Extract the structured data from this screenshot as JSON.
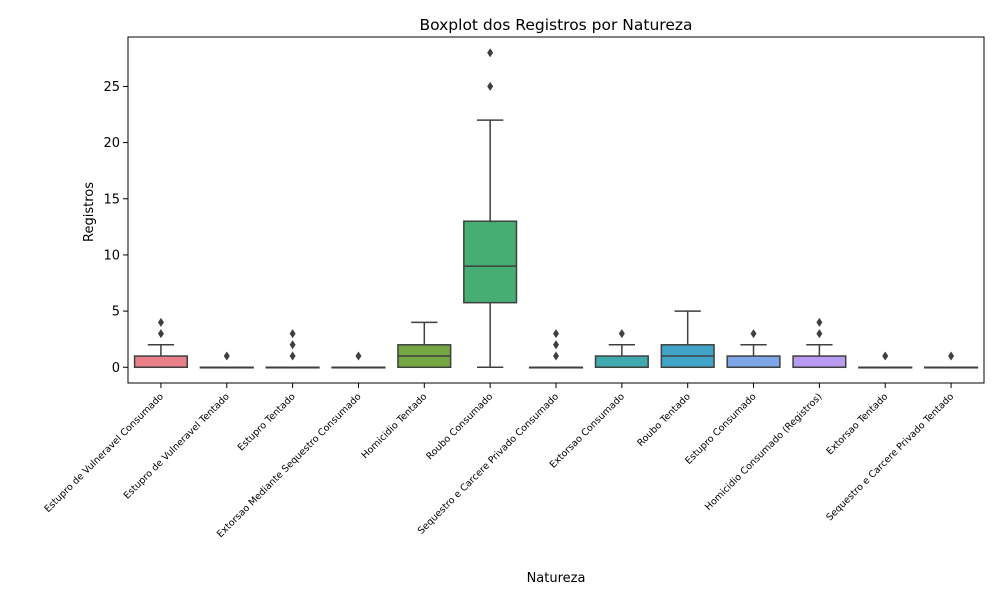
{
  "chart_data": {
    "type": "boxplot",
    "title": "Boxplot dos Registros por Natureza",
    "xlabel": "Natureza",
    "ylabel": "Registros",
    "ylim": [
      -1.4,
      29.4
    ],
    "yticks": [
      0,
      5,
      10,
      15,
      20,
      25
    ],
    "grid": false,
    "legend": "none",
    "categories": [
      "Estupro de Vulneravel Consumado",
      "Estupro de Vulneravel Tentado",
      "Estupro Tentado",
      "Extorsao Mediante Sequestro Consumado",
      "Homicidio Tentado",
      "Roubo Consumado",
      "Sequestro e Carcere Privado Consumado",
      "Extorsao Consumado",
      "Roubo Tentado",
      "Estupro Consumado",
      "Homicidio Consumado (Registros)",
      "Extorsao Tentado",
      "Sequestro e Carcere Privado Tentado"
    ],
    "boxes": [
      {
        "color": "#e8808a",
        "whislo": 0,
        "q1": 0,
        "med": 0,
        "q3": 1,
        "whishi": 2,
        "fliers": [
          3,
          4
        ]
      },
      {
        "color": "#d79056",
        "whislo": 0,
        "q1": 0,
        "med": 0,
        "q3": 0,
        "whishi": 0,
        "fliers": [
          1
        ]
      },
      {
        "color": "#b9a14a",
        "whislo": 0,
        "q1": 0,
        "med": 0,
        "q3": 0,
        "whishi": 0,
        "fliers": [
          1,
          2,
          3
        ]
      },
      {
        "color": "#9aad4a",
        "whislo": 0,
        "q1": 0,
        "med": 0,
        "q3": 0,
        "whishi": 0,
        "fliers": [
          1
        ]
      },
      {
        "color": "#74a843",
        "whislo": 0,
        "q1": 0,
        "med": 1,
        "q3": 2,
        "whishi": 4,
        "fliers": []
      },
      {
        "color": "#46ad73",
        "whislo": 0,
        "q1": 5.75,
        "med": 9,
        "q3": 13,
        "whishi": 22,
        "fliers": [
          25,
          28
        ]
      },
      {
        "color": "#45ad96",
        "whislo": 0,
        "q1": 0,
        "med": 0,
        "q3": 0,
        "whishi": 0,
        "fliers": [
          1,
          2,
          3
        ]
      },
      {
        "color": "#40a9ae",
        "whislo": 0,
        "q1": 0,
        "med": 0,
        "q3": 1,
        "whishi": 2,
        "fliers": [
          3
        ]
      },
      {
        "color": "#40a4c8",
        "whislo": 0,
        "q1": 0,
        "med": 1,
        "q3": 2,
        "whishi": 5,
        "fliers": []
      },
      {
        "color": "#7ea6e6",
        "whislo": 0,
        "q1": 0,
        "med": 0,
        "q3": 1,
        "whishi": 2,
        "fliers": [
          3
        ]
      },
      {
        "color": "#b89af0",
        "whislo": 0,
        "q1": 0,
        "med": 0,
        "q3": 1,
        "whishi": 2,
        "fliers": [
          3,
          4
        ]
      },
      {
        "color": "#e08ae2",
        "whislo": 0,
        "q1": 0,
        "med": 0,
        "q3": 0,
        "whishi": 0,
        "fliers": [
          1
        ]
      },
      {
        "color": "#e888bd",
        "whislo": 0,
        "q1": 0,
        "med": 0,
        "q3": 0,
        "whishi": 0,
        "fliers": [
          1
        ]
      }
    ]
  }
}
